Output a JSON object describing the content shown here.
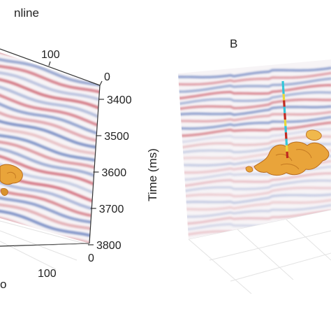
{
  "panel_a": {
    "header_fragment": "nline",
    "inline_ticks": [
      "100",
      "0"
    ],
    "bottom_ticks": [
      "100",
      "0"
    ],
    "time_axis": {
      "label": "Time (ms)",
      "ticks": [
        "3400",
        "3500",
        "3600",
        "3700",
        "3800"
      ]
    },
    "corner_fragment": "o"
  },
  "panel_b": {
    "label": "B"
  },
  "colors": {
    "positive": "#c23a4a",
    "negative": "#3f5fae",
    "geobody": "#e9a43a",
    "geobody_dark": "#b86a1c",
    "well_cyan": "#33c6d8",
    "well_red": "#c02a20",
    "well_yellow": "#e8d83a",
    "axis": "#333333"
  }
}
